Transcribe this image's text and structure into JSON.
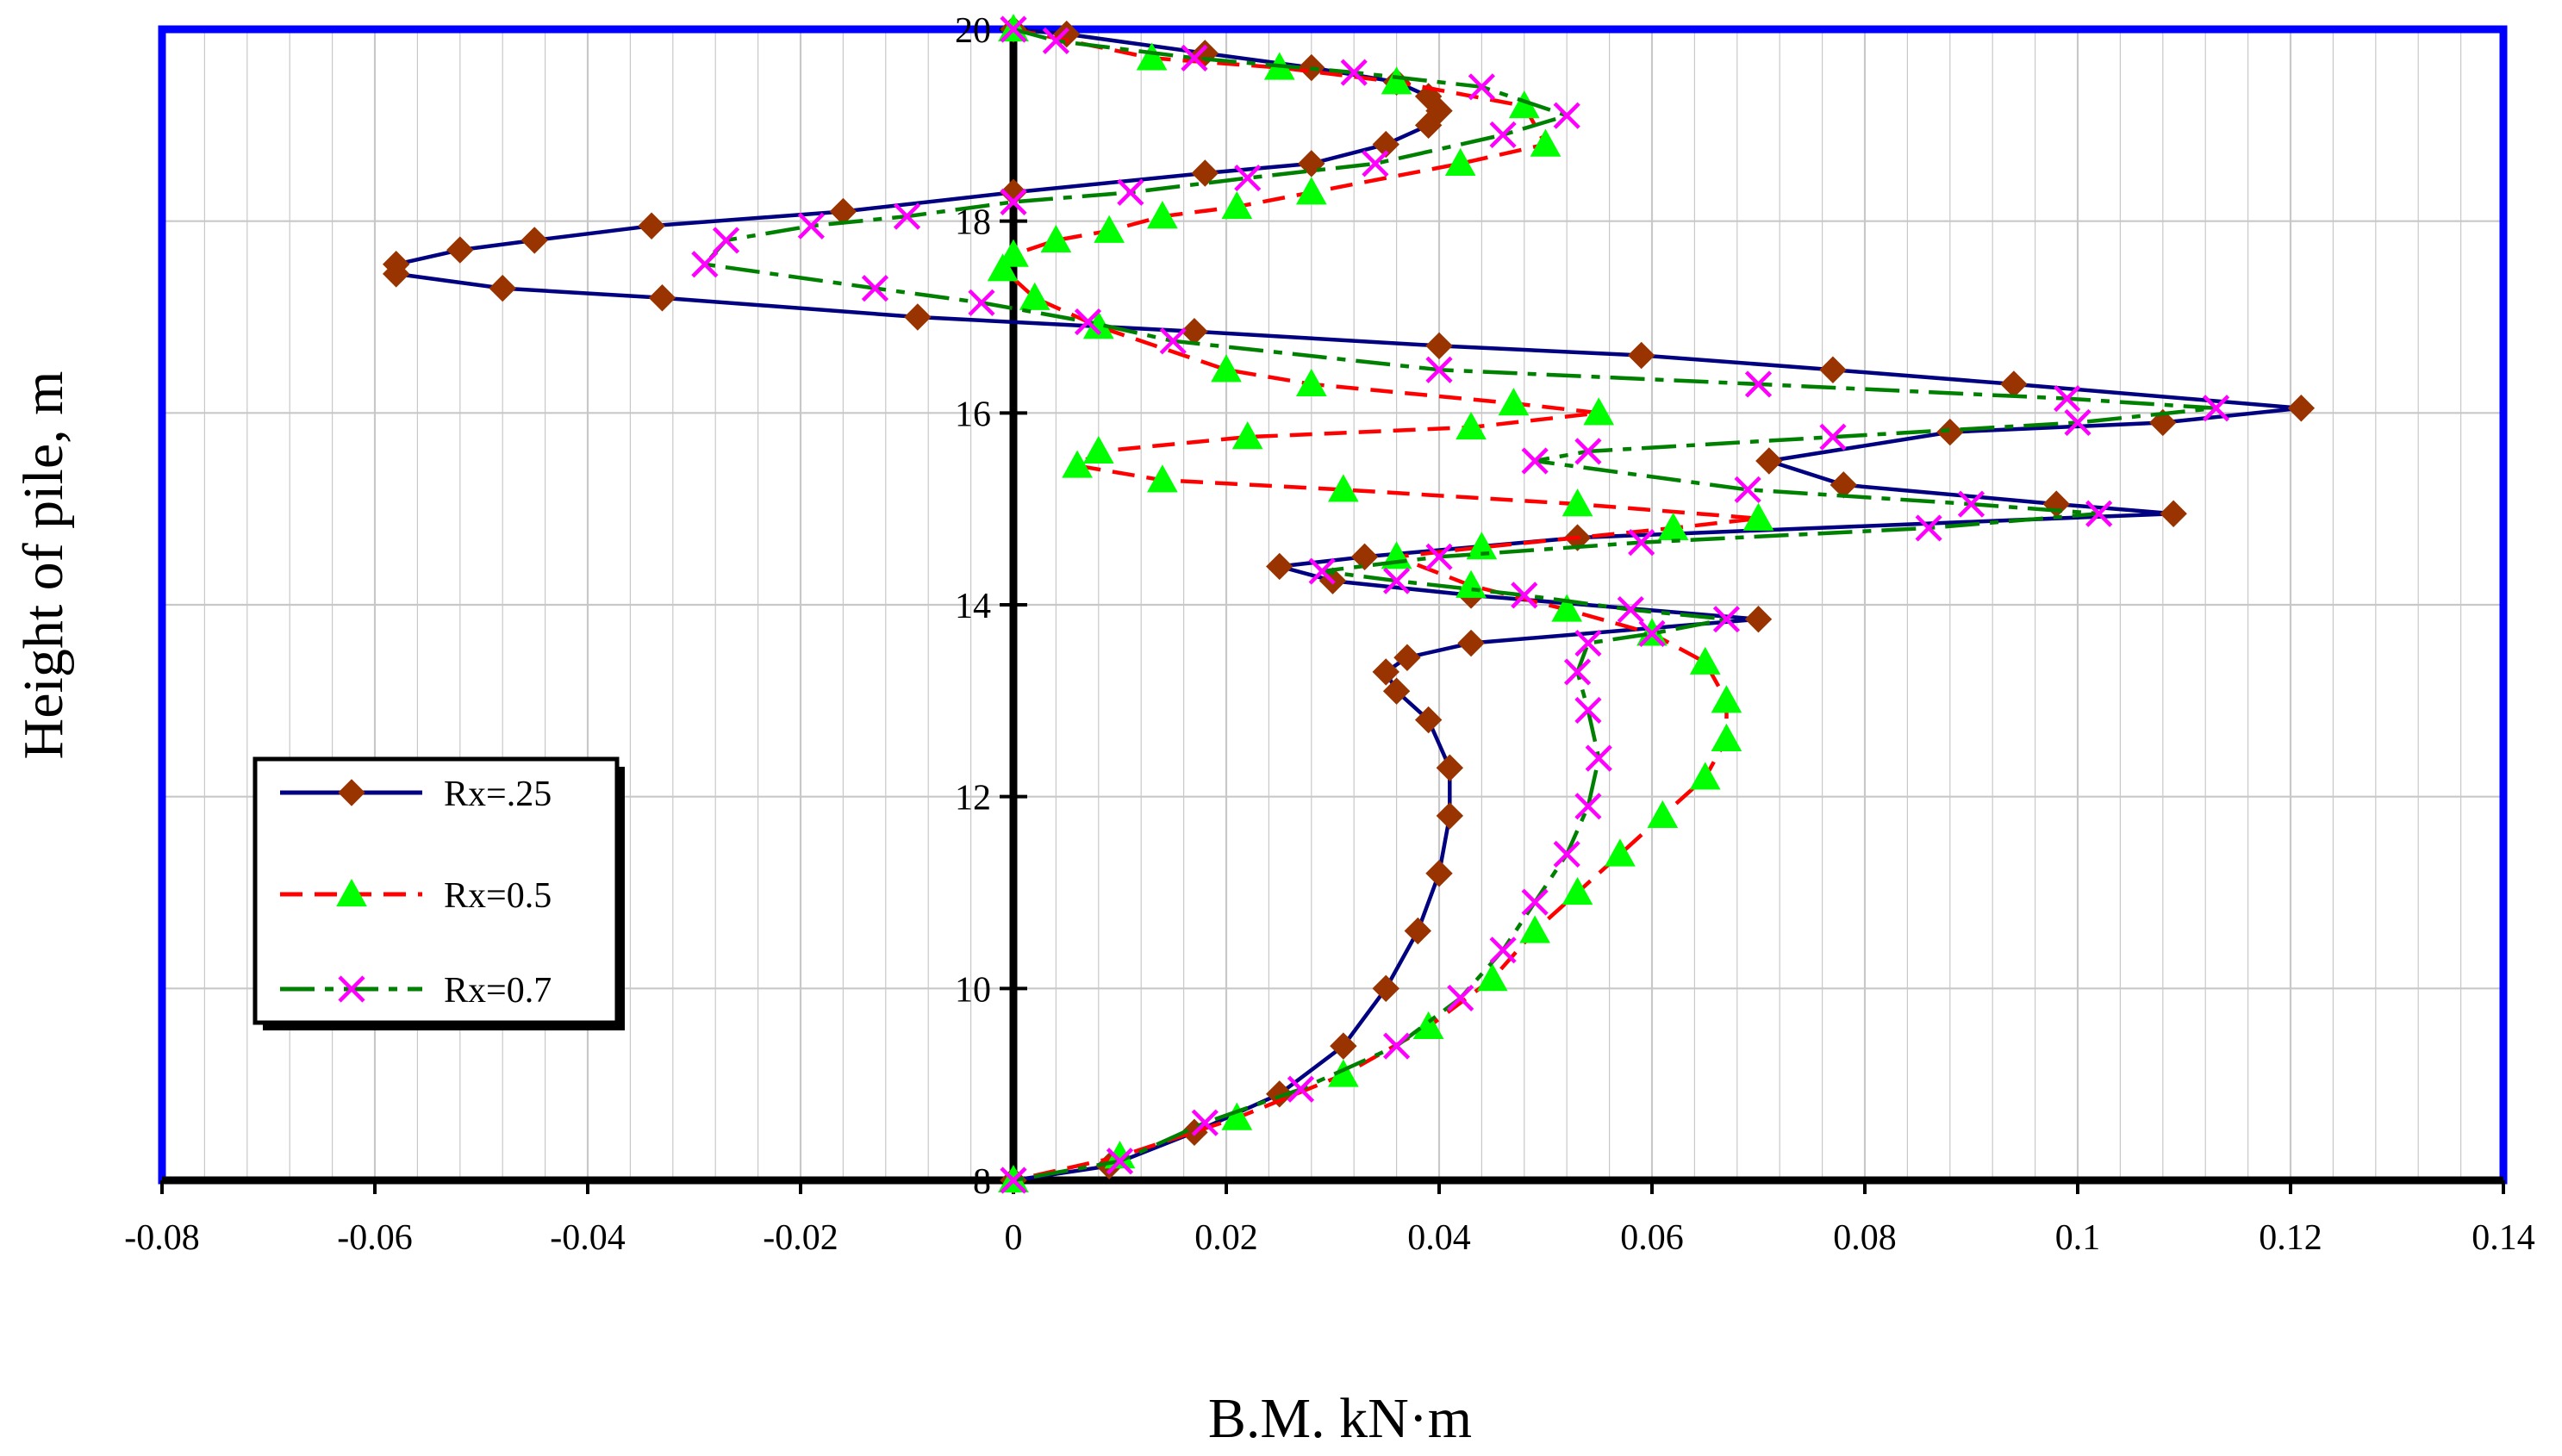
{
  "chart_data": {
    "type": "line",
    "title": "",
    "xlabel": "B.M. kN·m",
    "ylabel": "Height of pile, m",
    "xlim": [
      -0.08,
      0.14
    ],
    "ylim": [
      8,
      20
    ],
    "x_ticks": [
      -0.08,
      -0.06,
      -0.04,
      -0.02,
      0,
      0.02,
      0.04,
      0.06,
      0.08,
      0.1,
      0.12,
      0.14
    ],
    "x_tick_labels": [
      "-0.08",
      "-0.06",
      "-0.04",
      "-0.02",
      "0",
      "0.02",
      "0.04",
      "0.06",
      "0.08",
      "0.1",
      "0.12",
      "0.14"
    ],
    "y_ticks": [
      8,
      10,
      12,
      14,
      16,
      18,
      20
    ],
    "y_tick_labels": [
      "8",
      "10",
      "12",
      "14",
      "16",
      "18",
      "20"
    ],
    "grid": true,
    "legend_position": "left-middle",
    "colors": {
      "plot_frame": "#0000ff",
      "grid": "#c8c8c8",
      "axis": "#000000"
    },
    "series": [
      {
        "name": "Rx=.25",
        "line_color": "#000080",
        "line_style": "solid",
        "marker": "diamond",
        "marker_color": "#993300",
        "points": [
          [
            0,
            20
          ],
          [
            0.005,
            19.95
          ],
          [
            0.018,
            19.75
          ],
          [
            0.028,
            19.6
          ],
          [
            0.036,
            19.45
          ],
          [
            0.039,
            19.3
          ],
          [
            0.04,
            19.15
          ],
          [
            0.039,
            19.0
          ],
          [
            0.035,
            18.8
          ],
          [
            0.028,
            18.6
          ],
          [
            0.018,
            18.5
          ],
          [
            0.0,
            18.3
          ],
          [
            -0.016,
            18.1
          ],
          [
            -0.034,
            17.95
          ],
          [
            -0.045,
            17.8
          ],
          [
            -0.052,
            17.7
          ],
          [
            -0.058,
            17.55
          ],
          [
            -0.058,
            17.45
          ],
          [
            -0.048,
            17.3
          ],
          [
            -0.033,
            17.2
          ],
          [
            -0.009,
            17.0
          ],
          [
            0.017,
            16.85
          ],
          [
            0.04,
            16.7
          ],
          [
            0.059,
            16.6
          ],
          [
            0.077,
            16.45
          ],
          [
            0.094,
            16.3
          ],
          [
            0.121,
            16.05
          ],
          [
            0.108,
            15.9
          ],
          [
            0.088,
            15.8
          ],
          [
            0.071,
            15.5
          ],
          [
            0.078,
            15.25
          ],
          [
            0.098,
            15.05
          ],
          [
            0.109,
            14.95
          ],
          [
            0.053,
            14.7
          ],
          [
            0.033,
            14.5
          ],
          [
            0.025,
            14.4
          ],
          [
            0.03,
            14.25
          ],
          [
            0.043,
            14.1
          ],
          [
            0.07,
            13.85
          ],
          [
            0.043,
            13.6
          ],
          [
            0.037,
            13.45
          ],
          [
            0.035,
            13.3
          ],
          [
            0.036,
            13.1
          ],
          [
            0.039,
            12.8
          ],
          [
            0.041,
            12.3
          ],
          [
            0.041,
            11.8
          ],
          [
            0.04,
            11.2
          ],
          [
            0.038,
            10.6
          ],
          [
            0.035,
            10.0
          ],
          [
            0.031,
            9.4
          ],
          [
            0.025,
            8.9
          ],
          [
            0.017,
            8.5
          ],
          [
            0.009,
            8.15
          ],
          [
            0,
            8
          ]
        ]
      },
      {
        "name": "Rx=0.5",
        "line_color": "#ff0000",
        "line_style": "dashed",
        "marker": "triangle",
        "marker_color": "#00ff00",
        "points": [
          [
            0,
            20
          ],
          [
            0.013,
            19.7
          ],
          [
            0.025,
            19.6
          ],
          [
            0.036,
            19.45
          ],
          [
            0.048,
            19.2
          ],
          [
            0.05,
            18.8
          ],
          [
            0.042,
            18.6
          ],
          [
            0.028,
            18.3
          ],
          [
            0.021,
            18.15
          ],
          [
            0.014,
            18.05
          ],
          [
            0.009,
            17.9
          ],
          [
            0.004,
            17.8
          ],
          [
            0.0,
            17.65
          ],
          [
            -0.001,
            17.5
          ],
          [
            0.002,
            17.2
          ],
          [
            0.008,
            16.9
          ],
          [
            0.02,
            16.45
          ],
          [
            0.028,
            16.3
          ],
          [
            0.047,
            16.1
          ],
          [
            0.055,
            16.0
          ],
          [
            0.043,
            15.85
          ],
          [
            0.022,
            15.75
          ],
          [
            0.008,
            15.6
          ],
          [
            0.006,
            15.45
          ],
          [
            0.014,
            15.3
          ],
          [
            0.031,
            15.2
          ],
          [
            0.053,
            15.05
          ],
          [
            0.07,
            14.9
          ],
          [
            0.062,
            14.8
          ],
          [
            0.044,
            14.6
          ],
          [
            0.036,
            14.5
          ],
          [
            0.043,
            14.2
          ],
          [
            0.052,
            13.95
          ],
          [
            0.06,
            13.7
          ],
          [
            0.065,
            13.4
          ],
          [
            0.067,
            13.0
          ],
          [
            0.067,
            12.6
          ],
          [
            0.065,
            12.2
          ],
          [
            0.061,
            11.8
          ],
          [
            0.057,
            11.4
          ],
          [
            0.053,
            11.0
          ],
          [
            0.049,
            10.6
          ],
          [
            0.045,
            10.1
          ],
          [
            0.039,
            9.6
          ],
          [
            0.031,
            9.1
          ],
          [
            0.021,
            8.65
          ],
          [
            0.01,
            8.25
          ],
          [
            0,
            8
          ]
        ]
      },
      {
        "name": "Rx=0.7",
        "line_color": "#008000",
        "line_style": "dashdot",
        "marker": "x",
        "marker_color": "#ff00ff",
        "points": [
          [
            0,
            20
          ],
          [
            0.004,
            19.88
          ],
          [
            0.017,
            19.7
          ],
          [
            0.032,
            19.55
          ],
          [
            0.044,
            19.4
          ],
          [
            0.052,
            19.1
          ],
          [
            0.046,
            18.9
          ],
          [
            0.034,
            18.6
          ],
          [
            0.022,
            18.45
          ],
          [
            0.011,
            18.3
          ],
          [
            0.0,
            18.2
          ],
          [
            -0.01,
            18.05
          ],
          [
            -0.019,
            17.95
          ],
          [
            -0.027,
            17.8
          ],
          [
            -0.029,
            17.55
          ],
          [
            -0.013,
            17.3
          ],
          [
            -0.003,
            17.15
          ],
          [
            0.007,
            16.95
          ],
          [
            0.015,
            16.75
          ],
          [
            0.04,
            16.45
          ],
          [
            0.07,
            16.3
          ],
          [
            0.099,
            16.15
          ],
          [
            0.113,
            16.05
          ],
          [
            0.1,
            15.9
          ],
          [
            0.077,
            15.75
          ],
          [
            0.054,
            15.6
          ],
          [
            0.049,
            15.5
          ],
          [
            0.069,
            15.2
          ],
          [
            0.09,
            15.05
          ],
          [
            0.102,
            14.95
          ],
          [
            0.086,
            14.8
          ],
          [
            0.059,
            14.65
          ],
          [
            0.04,
            14.5
          ],
          [
            0.029,
            14.35
          ],
          [
            0.036,
            14.25
          ],
          [
            0.048,
            14.1
          ],
          [
            0.058,
            13.95
          ],
          [
            0.067,
            13.85
          ],
          [
            0.06,
            13.7
          ],
          [
            0.054,
            13.6
          ],
          [
            0.053,
            13.3
          ],
          [
            0.054,
            12.9
          ],
          [
            0.055,
            12.4
          ],
          [
            0.054,
            11.9
          ],
          [
            0.052,
            11.4
          ],
          [
            0.049,
            10.9
          ],
          [
            0.046,
            10.4
          ],
          [
            0.042,
            9.9
          ],
          [
            0.036,
            9.4
          ],
          [
            0.027,
            8.95
          ],
          [
            0.018,
            8.6
          ],
          [
            0.01,
            8.2
          ],
          [
            0,
            8
          ]
        ]
      }
    ]
  }
}
